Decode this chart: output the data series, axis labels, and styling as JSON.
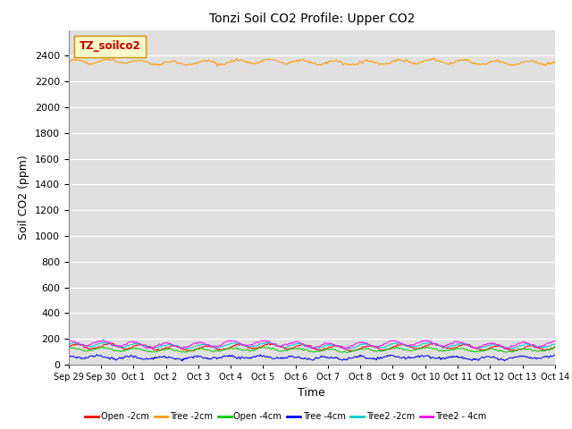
{
  "title": "Tonzi Soil CO2 Profile: Upper CO2",
  "xlabel": "Time",
  "ylabel": "Soil CO2 (ppm)",
  "ylim": [
    0,
    2600
  ],
  "yticks": [
    0,
    200,
    400,
    600,
    800,
    1000,
    1200,
    1400,
    1600,
    1800,
    2000,
    2200,
    2400
  ],
  "background_color": "#e0e0e0",
  "fig_background": "#ffffff",
  "legend_label": "TZ_soilco2",
  "legend_box_color": "#ffffcc",
  "legend_box_edge": "#cc8800",
  "legend_text_color": "#cc0000",
  "x_tick_labels": [
    "Sep 29",
    "Sep 30",
    "Oct 1",
    "Oct 2",
    "Oct 3",
    "Oct 4",
    "Oct 5",
    "Oct 6",
    "Oct 7",
    "Oct 8",
    "Oct 9",
    "Oct 10",
    "Oct 11",
    "Oct 12",
    "Oct 13",
    "Oct 14"
  ],
  "n_points": 1000,
  "series": [
    {
      "name": "Open -2cm",
      "color": "#ff0000",
      "base": 135,
      "amp": 18,
      "noise": 6,
      "freq": 1.0,
      "phase": 0.0
    },
    {
      "name": "Tree -2cm",
      "color": "#ff9900",
      "base": 2350,
      "amp": 15,
      "noise": 8,
      "freq": 1.0,
      "phase": 0.3
    },
    {
      "name": "Open -4cm",
      "color": "#00cc00",
      "base": 115,
      "amp": 12,
      "noise": 5,
      "freq": 1.0,
      "phase": 1.2
    },
    {
      "name": "Tree -4cm",
      "color": "#0000ee",
      "base": 55,
      "amp": 10,
      "noise": 8,
      "freq": 1.0,
      "phase": 2.0
    },
    {
      "name": "Tree2 -2cm",
      "color": "#00cccc",
      "base": 148,
      "amp": 15,
      "noise": 5,
      "freq": 1.0,
      "phase": 0.8
    },
    {
      "name": "Tree2 - 4cm",
      "color": "#ff00ff",
      "base": 158,
      "amp": 20,
      "noise": 6,
      "freq": 1.0,
      "phase": 1.5
    }
  ]
}
